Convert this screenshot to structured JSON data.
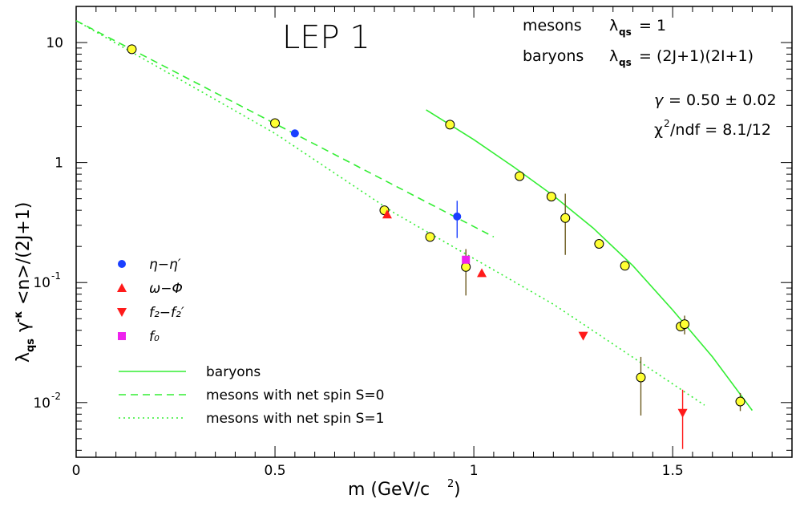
{
  "chart_data": {
    "type": "scatter",
    "title": "LEP 1",
    "xlabel": "m  (GeV/c²)",
    "ylabel": "λ_qs γ^{-κ} <n>/(2J+1)",
    "ylabel_parts": {
      "lambda": "λ",
      "lambda_sub": "qs",
      "gamma": "γ",
      "gamma_sup": "-κ",
      "rest": "<n>/(2J+1)"
    },
    "xlim": [
      0,
      1.8
    ],
    "ylim": [
      0.0035,
      20
    ],
    "yscale": "log",
    "x_ticks": [
      {
        "value": 0,
        "label": "0"
      },
      {
        "value": 0.5,
        "label": "0.5"
      },
      {
        "value": 1,
        "label": "1"
      },
      {
        "value": 1.5,
        "label": "1.5"
      }
    ],
    "y_ticks": [
      {
        "value": 10,
        "label": "10"
      },
      {
        "value": 1,
        "label": "1"
      },
      {
        "value": 0.1,
        "label": "10",
        "exp": "-1"
      },
      {
        "value": 0.01,
        "label": "10",
        "exp": "-2"
      }
    ],
    "info": {
      "mesons_label": "mesons",
      "mesons_formula": "λqs = 1",
      "baryons_label": "baryons",
      "baryons_formula": "λqs = (2J+1)(2I+1)",
      "gamma_fit": "γ = 0.50 ± 0.02",
      "chi2": "χ²/ndf = 8.1/12"
    },
    "info_parts": {
      "mesons_rhs": "= 1",
      "baryons_rhs": "= (2J+1)(2I+1)",
      "gamma_rhs": "= 0.50 ± 0.02",
      "chi2_rhs": "/ndf = 8.1/12"
    },
    "colors": {
      "fit": "#33ee33",
      "yellow": "#ffff33",
      "blue": "#1a3fff",
      "red": "#ff1a1a",
      "magenta": "#ee22ee",
      "errbar": "#6b5a1e"
    },
    "series": [
      {
        "name": "",
        "marker": "yellow-circle",
        "points": [
          {
            "x": 0.14,
            "y": 8.8
          },
          {
            "x": 0.5,
            "y": 2.13
          },
          {
            "x": 0.775,
            "y": 0.4
          },
          {
            "x": 0.89,
            "y": 0.24
          },
          {
            "x": 0.98,
            "y": 0.135,
            "err_lo": 0.078,
            "err_hi": 0.19
          },
          {
            "x": 0.94,
            "y": 2.07
          },
          {
            "x": 1.115,
            "y": 0.77
          },
          {
            "x": 1.195,
            "y": 0.52
          },
          {
            "x": 1.23,
            "y": 0.345,
            "err_lo": 0.17,
            "err_hi": 0.55
          },
          {
            "x": 1.315,
            "y": 0.21
          },
          {
            "x": 1.38,
            "y": 0.138
          },
          {
            "x": 1.52,
            "y": 0.043
          },
          {
            "x": 1.53,
            "y": 0.045,
            "err_lo": 0.037,
            "err_hi": 0.053
          },
          {
            "x": 1.42,
            "y": 0.0162,
            "err_lo": 0.0078,
            "err_hi": 0.024
          },
          {
            "x": 1.67,
            "y": 0.0102,
            "err_lo": 0.0085,
            "err_hi": 0.012
          }
        ]
      },
      {
        "name": "η−η′",
        "marker": "blue-circle",
        "points": [
          {
            "x": 0.55,
            "y": 1.75
          },
          {
            "x": 0.958,
            "y": 0.355,
            "err_lo": 0.235,
            "err_hi": 0.48
          }
        ]
      },
      {
        "name": "ω−Φ",
        "marker": "red-triangle-up",
        "points": [
          {
            "x": 0.782,
            "y": 0.37
          },
          {
            "x": 1.02,
            "y": 0.12
          }
        ]
      },
      {
        "name": "f₂−f₂′",
        "marker": "red-triangle-down",
        "points": [
          {
            "x": 1.275,
            "y": 0.036
          },
          {
            "x": 1.525,
            "y": 0.0082,
            "err_lo": 0.0041,
            "err_hi": 0.0128
          }
        ]
      },
      {
        "name": "f₀",
        "marker": "magenta-square",
        "points": [
          {
            "x": 0.98,
            "y": 0.155
          }
        ]
      }
    ],
    "fits": [
      {
        "name": "baryons",
        "style": "solid",
        "points": [
          [
            0.88,
            2.75
          ],
          [
            0.94,
            2.07
          ],
          [
            1.0,
            1.55
          ],
          [
            1.1,
            0.92
          ],
          [
            1.2,
            0.53
          ],
          [
            1.3,
            0.285
          ],
          [
            1.4,
            0.138
          ],
          [
            1.5,
            0.059
          ],
          [
            1.6,
            0.024
          ],
          [
            1.7,
            0.0086
          ]
        ]
      },
      {
        "name": "mesons with net spin S=0",
        "style": "dashed",
        "points": [
          [
            0,
            15.2
          ],
          [
            1.05,
            0.24
          ]
        ]
      },
      {
        "name": "mesons with net spin S=1",
        "style": "dotted",
        "points": [
          [
            0,
            15.2
          ],
          [
            0.5,
            1.75
          ],
          [
            0.8,
            0.38
          ],
          [
            1.2,
            0.066
          ],
          [
            1.58,
            0.0095
          ]
        ]
      }
    ],
    "legend_lines": [
      {
        "name": "baryons",
        "style": "solid"
      },
      {
        "name": "mesons with net spin S=0",
        "style": "dashed"
      },
      {
        "name": "mesons with net spin S=1",
        "style": "dotted"
      }
    ],
    "legend_placement": "left",
    "grid": false
  }
}
